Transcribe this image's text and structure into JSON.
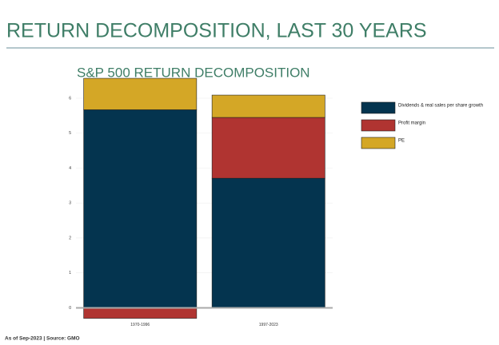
{
  "title": "RETURN DECOMPOSITION, LAST 30 YEARS",
  "footnote": "As of Sep-2023 | Source: GMO",
  "chart_data": {
    "type": "stacked_bar",
    "title": "S&P 500 RETURN DECOMPOSITION",
    "categories": [
      "1970-1996",
      "1997-2023"
    ],
    "series": [
      {
        "name": "Dividends & real sales per share growth",
        "color": "#04344f",
        "values": [
          5.67,
          3.71
        ]
      },
      {
        "name": "Profit margin",
        "color": "#b03431",
        "values": [
          -0.3,
          1.74
        ]
      },
      {
        "name": "PE",
        "color": "#d4a726",
        "values": [
          0.9,
          0.64
        ]
      }
    ],
    "ylim": [
      -0.3,
      6.8
    ],
    "yticks": [
      0,
      1,
      2,
      3,
      4,
      5,
      6
    ],
    "grid": true
  }
}
